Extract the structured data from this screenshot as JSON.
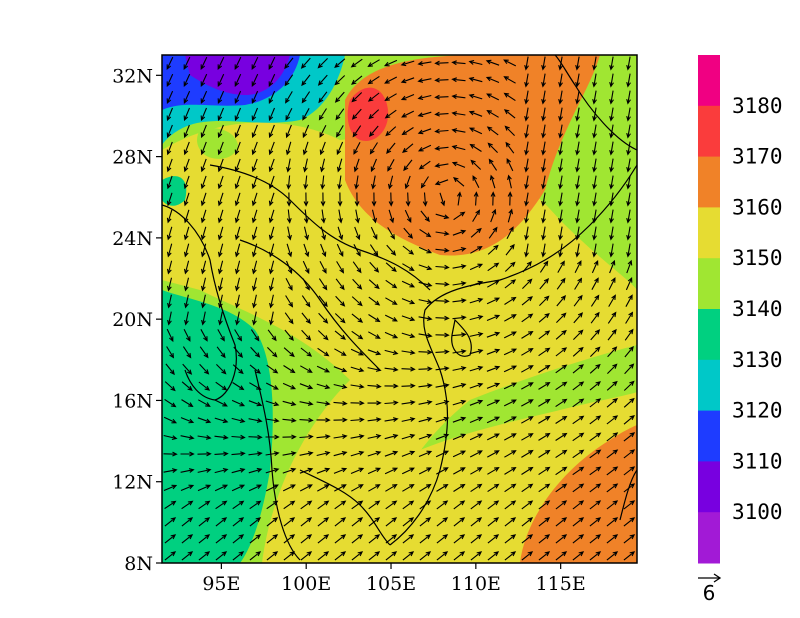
{
  "map": {
    "lon_range": [
      91.5,
      119.5
    ],
    "lat_range": [
      8,
      33
    ],
    "lon_ticks": [
      {
        "value": 95,
        "label": "95E"
      },
      {
        "value": 100,
        "label": "100E"
      },
      {
        "value": 105,
        "label": "105E"
      },
      {
        "value": 110,
        "label": "110E"
      },
      {
        "value": 115,
        "label": "115E"
      }
    ],
    "lat_ticks": [
      {
        "value": 8,
        "label": "8N"
      },
      {
        "value": 12,
        "label": "12N"
      },
      {
        "value": 16,
        "label": "16N"
      },
      {
        "value": 20,
        "label": "20N"
      },
      {
        "value": 24,
        "label": "24N"
      },
      {
        "value": 28,
        "label": "28N"
      },
      {
        "value": 32,
        "label": "32N"
      }
    ],
    "field": "geopotential height (shaded) with wind vectors",
    "coastline_color": "#000000"
  },
  "colorbar": {
    "labels": [
      "3100",
      "3110",
      "3120",
      "3130",
      "3140",
      "3150",
      "3160",
      "3170",
      "3180"
    ],
    "colors": [
      "#a21ad6",
      "#7800e0",
      "#1e3cff",
      "#00c8c8",
      "#00d080",
      "#a0e632",
      "#e6dc32",
      "#f08228",
      "#fa3c3c",
      "#f00082"
    ]
  },
  "reference_vector": {
    "label": "6"
  }
}
